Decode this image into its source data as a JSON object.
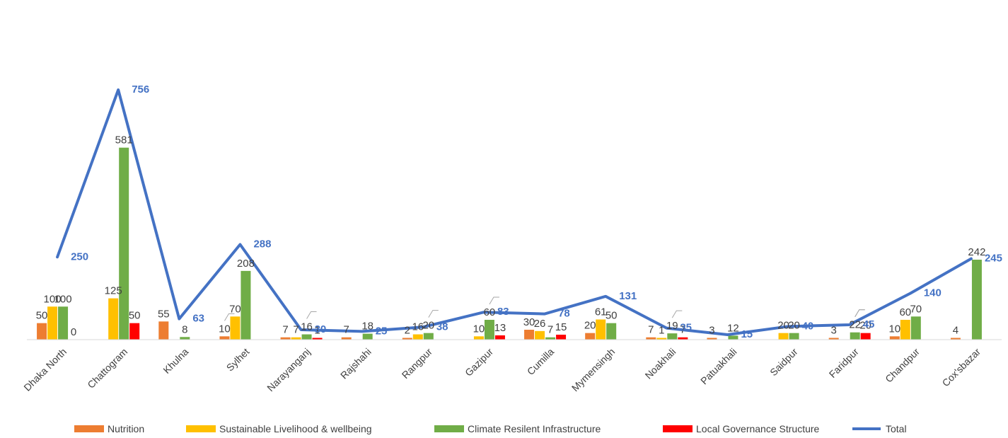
{
  "chart_data": {
    "type": "bar",
    "categories": [
      "Dhaka North",
      "Chattogram",
      "Khulna",
      "Sylhet",
      "Narayanganj",
      "Rajshahi",
      "Rangpur",
      "Gazipur",
      "Cumilla",
      "Mymensingh",
      "Noakhali",
      "Patuakhali",
      "Saidpur",
      "Faridpur",
      "Chandpur",
      "Cox'sbazar"
    ],
    "series": [
      {
        "name": "Nutrition",
        "color": "#ED7D31",
        "values": [
          50,
          null,
          55,
          10,
          7,
          7,
          2,
          null,
          30,
          20,
          7,
          3,
          null,
          3,
          10,
          4
        ]
      },
      {
        "name": "Sustainable Livelihood & wellbeing",
        "color": "#FFC000",
        "values": [
          100,
          125,
          null,
          70,
          7,
          null,
          16,
          10,
          26,
          61,
          1,
          null,
          20,
          null,
          60,
          null
        ]
      },
      {
        "name": "Climate Resilent Infrastructure",
        "color": "#70AD47",
        "values": [
          100,
          581,
          8,
          208,
          16,
          18,
          20,
          60,
          7,
          50,
          19,
          12,
          20,
          22,
          70,
          242
        ]
      },
      {
        "name": "Local Governance Structure",
        "color": "#FF0000",
        "values": [
          0,
          50,
          null,
          null,
          1,
          null,
          null,
          13,
          15,
          null,
          7,
          null,
          null,
          20,
          null,
          null
        ]
      },
      {
        "name": "Total",
        "color": "#4472C4",
        "type": "line",
        "values": [
          250,
          756,
          63,
          288,
          30,
          25,
          38,
          83,
          78,
          131,
          35,
          15,
          40,
          45,
          140,
          245
        ]
      }
    ],
    "ylim": [
      0,
      800
    ],
    "legend_position": "bottom",
    "grid": false
  }
}
